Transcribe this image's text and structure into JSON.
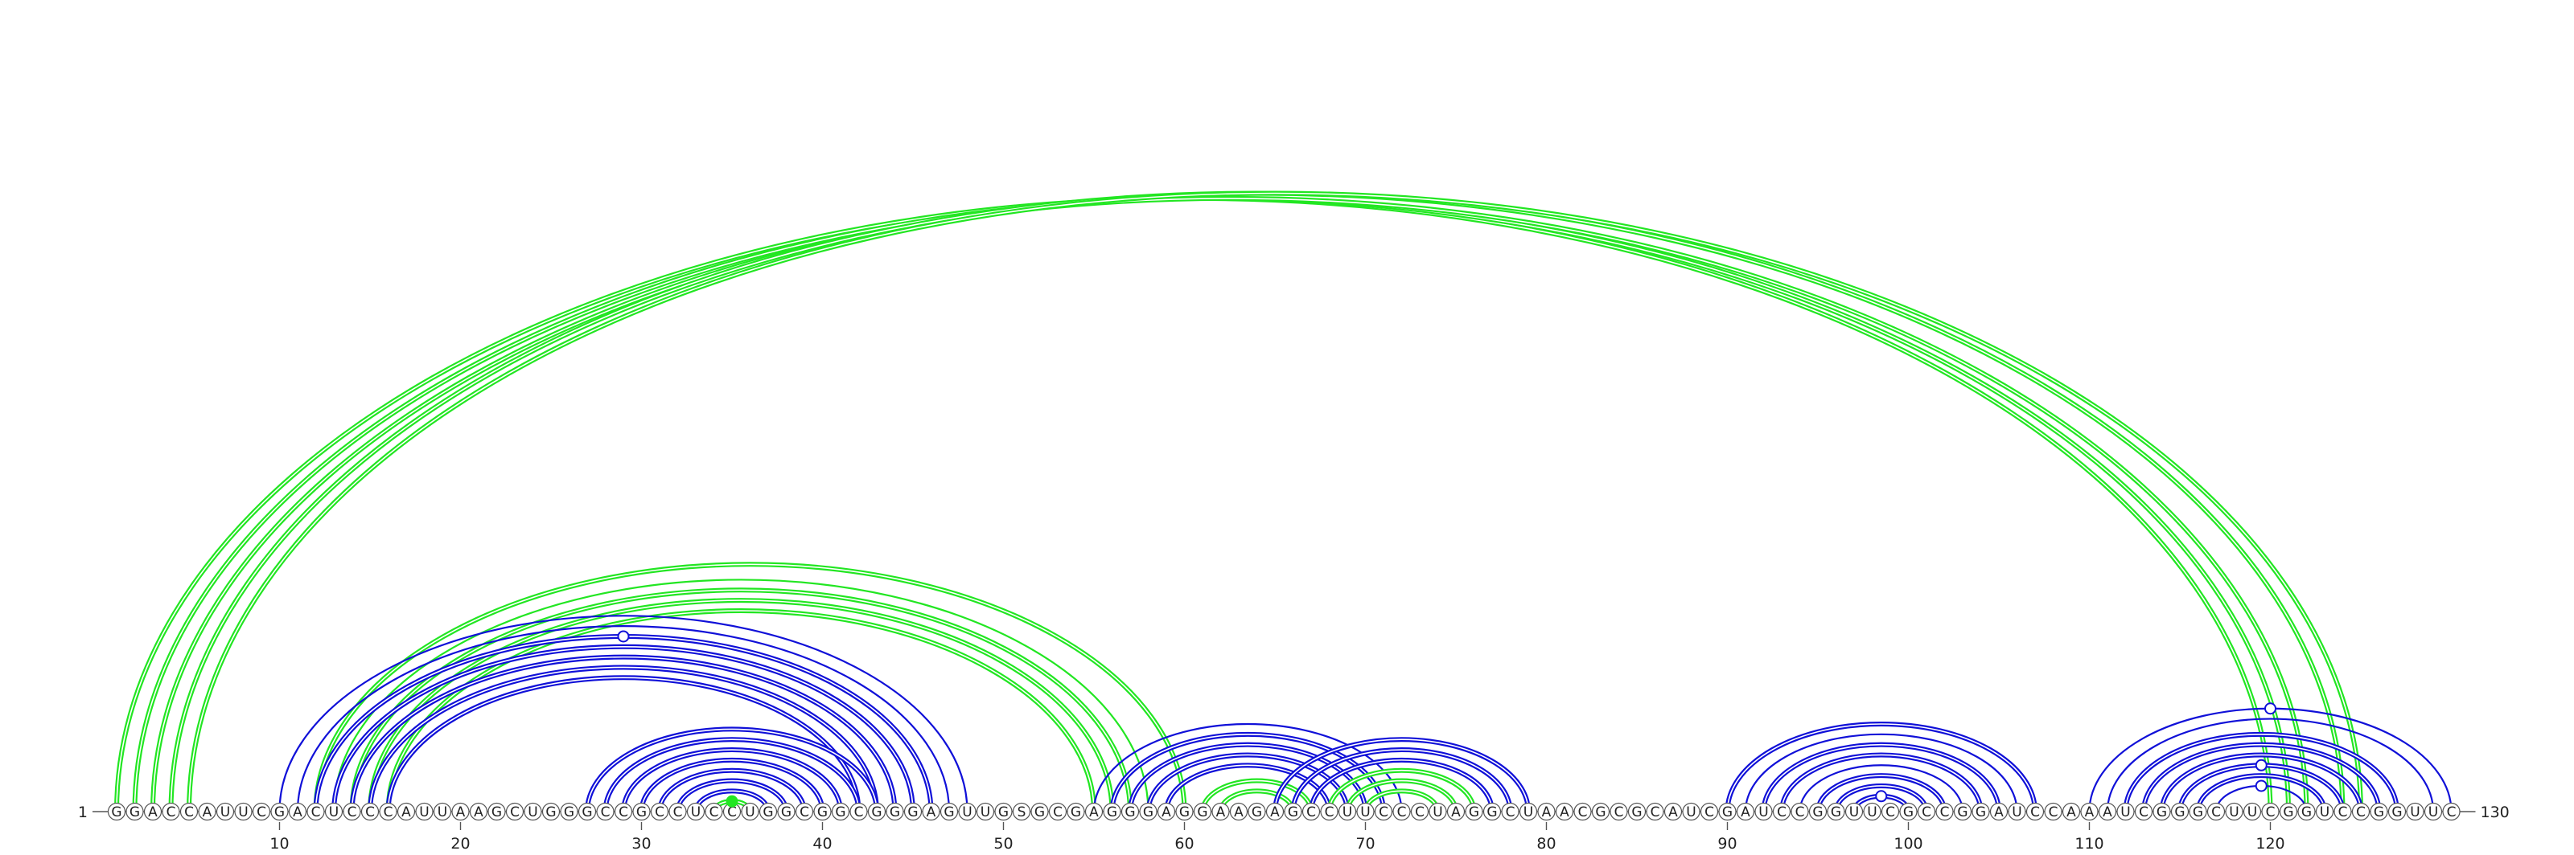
{
  "sequence": "GGACCAUUCGACUCCCAUUAAGCUGGGCCGCCUCCUGGCGGCGGGAGUUGSGCGAGGGAGGAAGAGCCUUCCCUAGGCUAACGCGCAUCGAUCCGGUUCGCCGGAUCCAAAUCGGGCUUCGGUCCGGUUC",
  "start_label": "1",
  "end_label": "130",
  "ticks": [
    10,
    20,
    30,
    40,
    50,
    60,
    70,
    80,
    90,
    100,
    110,
    120
  ],
  "colors": {
    "blue": "#1010d8",
    "green": "#22e622"
  },
  "arcs": [
    {
      "i": 1,
      "j": 120,
      "color": "green",
      "double": true
    },
    {
      "i": 2,
      "j": 121,
      "color": "green",
      "double": true
    },
    {
      "i": 3,
      "j": 122,
      "color": "green",
      "double": true
    },
    {
      "i": 4,
      "j": 124,
      "color": "green",
      "double": true
    },
    {
      "i": 5,
      "j": 125,
      "color": "green",
      "double": true
    },
    {
      "i": 12,
      "j": 60,
      "color": "green",
      "double": true
    },
    {
      "i": 13,
      "j": 58,
      "color": "green",
      "double": false
    },
    {
      "i": 14,
      "j": 57,
      "color": "green",
      "double": true
    },
    {
      "i": 15,
      "j": 56,
      "color": "green",
      "double": true
    },
    {
      "i": 16,
      "j": 55,
      "color": "green",
      "double": true
    },
    {
      "i": 10,
      "j": 48,
      "color": "blue",
      "double": false
    },
    {
      "i": 11,
      "j": 47,
      "color": "blue",
      "double": false
    },
    {
      "i": 12,
      "j": 46,
      "color": "blue",
      "double": true
    },
    {
      "i": 13,
      "j": 45,
      "color": "blue",
      "double": true
    },
    {
      "i": 14,
      "j": 44,
      "color": "blue",
      "double": true
    },
    {
      "i": 15,
      "j": 43,
      "color": "blue",
      "double": true
    },
    {
      "i": 16,
      "j": 42,
      "color": "blue",
      "double": true
    },
    {
      "i": 27,
      "j": 43,
      "color": "blue",
      "double": true
    },
    {
      "i": 28,
      "j": 42,
      "color": "blue",
      "double": true
    },
    {
      "i": 29,
      "j": 41,
      "color": "blue",
      "double": true
    },
    {
      "i": 30,
      "j": 40,
      "color": "blue",
      "double": true
    },
    {
      "i": 31,
      "j": 39,
      "color": "blue",
      "double": true
    },
    {
      "i": 32,
      "j": 38,
      "color": "blue",
      "double": true
    },
    {
      "i": 33,
      "j": 37,
      "color": "blue",
      "double": true
    },
    {
      "i": 34,
      "j": 36,
      "color": "green",
      "double": true
    },
    {
      "i": 55,
      "j": 72,
      "color": "blue",
      "double": false
    },
    {
      "i": 56,
      "j": 71,
      "color": "blue",
      "double": true
    },
    {
      "i": 57,
      "j": 70,
      "color": "blue",
      "double": true
    },
    {
      "i": 58,
      "j": 69,
      "color": "blue",
      "double": true
    },
    {
      "i": 59,
      "j": 68,
      "color": "blue",
      "double": true
    },
    {
      "i": 61,
      "j": 67,
      "color": "green",
      "double": true
    },
    {
      "i": 62,
      "j": 66,
      "color": "green",
      "double": true
    },
    {
      "i": 65,
      "j": 79,
      "color": "blue",
      "double": true
    },
    {
      "i": 66,
      "j": 78,
      "color": "blue",
      "double": true
    },
    {
      "i": 67,
      "j": 77,
      "color": "blue",
      "double": true
    },
    {
      "i": 68,
      "j": 76,
      "color": "green",
      "double": true
    },
    {
      "i": 69,
      "j": 75,
      "color": "green",
      "double": true
    },
    {
      "i": 70,
      "j": 74,
      "color": "green",
      "double": true
    },
    {
      "i": 90,
      "j": 107,
      "color": "blue",
      "double": true
    },
    {
      "i": 91,
      "j": 106,
      "color": "blue",
      "double": false
    },
    {
      "i": 92,
      "j": 105,
      "color": "blue",
      "double": true
    },
    {
      "i": 93,
      "j": 104,
      "color": "blue",
      "double": true
    },
    {
      "i": 94,
      "j": 103,
      "color": "blue",
      "double": false
    },
    {
      "i": 95,
      "j": 102,
      "color": "blue",
      "double": true
    },
    {
      "i": 96,
      "j": 101,
      "color": "blue",
      "double": true
    },
    {
      "i": 97,
      "j": 100,
      "color": "blue",
      "double": true
    },
    {
      "i": 110,
      "j": 130,
      "color": "blue",
      "double": false
    },
    {
      "i": 111,
      "j": 129,
      "color": "blue",
      "double": false
    },
    {
      "i": 112,
      "j": 127,
      "color": "blue",
      "double": true
    },
    {
      "i": 113,
      "j": 126,
      "color": "blue",
      "double": true
    },
    {
      "i": 114,
      "j": 125,
      "color": "blue",
      "double": true
    },
    {
      "i": 115,
      "j": 124,
      "color": "blue",
      "double": true
    },
    {
      "i": 116,
      "j": 123,
      "color": "blue",
      "double": true
    },
    {
      "i": 117,
      "j": 122,
      "color": "blue",
      "double": false
    }
  ],
  "markers": [
    {
      "i": 12,
      "j": 46,
      "color": "blue",
      "fill": "white"
    },
    {
      "i": 34,
      "j": 36,
      "color": "green",
      "fill": "solid"
    },
    {
      "i": 97,
      "j": 100,
      "color": "blue",
      "fill": "white"
    },
    {
      "i": 110,
      "j": 130,
      "color": "blue",
      "fill": "white"
    },
    {
      "i": 115,
      "j": 124,
      "color": "blue",
      "fill": "white"
    },
    {
      "i": 117,
      "j": 122,
      "color": "blue",
      "fill": "white"
    }
  ]
}
